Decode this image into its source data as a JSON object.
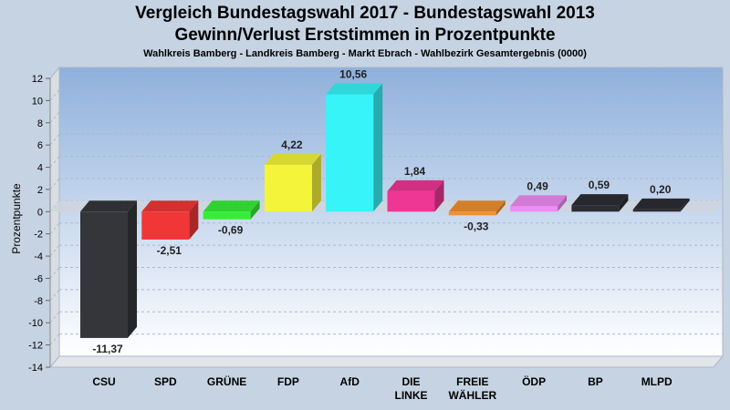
{
  "header": {
    "title_line1": "Vergleich Bundestagswahl 2017 - Bundestagswahl 2013",
    "title_line2": "Gewinn/Verlust Erststimmen in Prozentpunkte",
    "subtitle": "Wahlkreis Bamberg - Landkreis Bamberg - Markt Ebrach - Wahlbezirk Gesamtergebnis (0000)"
  },
  "chart_data": {
    "type": "bar",
    "title": "Vergleich Bundestagswahl 2017 - Bundestagswahl 2013",
    "subtitle": "Gewinn/Verlust Erststimmen in Prozentpunkte",
    "ylabel": "Prozentpunkte",
    "xlabel": "",
    "ylim": [
      -14,
      12
    ],
    "yticks": [
      12,
      10,
      8,
      6,
      4,
      2,
      0,
      -2,
      -4,
      -6,
      -8,
      -10,
      -12,
      -14
    ],
    "grid": true,
    "categories": [
      {
        "lines": [
          "CSU"
        ]
      },
      {
        "lines": [
          "SPD"
        ]
      },
      {
        "lines": [
          "GRÜNE"
        ]
      },
      {
        "lines": [
          "FDP"
        ]
      },
      {
        "lines": [
          "AfD"
        ]
      },
      {
        "lines": [
          "DIE",
          "LINKE"
        ]
      },
      {
        "lines": [
          "FREIE",
          "WÄHLER"
        ]
      },
      {
        "lines": [
          "ÖDP"
        ]
      },
      {
        "lines": [
          "BP"
        ]
      },
      {
        "lines": [
          "MLPD"
        ]
      }
    ],
    "values": [
      -11.37,
      -2.51,
      -0.69,
      4.22,
      10.56,
      1.84,
      -0.33,
      0.49,
      0.59,
      0.2
    ],
    "value_labels": [
      "-11,37",
      "-2,51",
      "-0,69",
      "4,22",
      "10,56",
      "1,84",
      "-0,33",
      "0,49",
      "0,59",
      "0,20"
    ],
    "colors": [
      "#34363a",
      "#f03636",
      "#36ee36",
      "#f4f43a",
      "#36f4f8",
      "#ee3694",
      "#f09030",
      "#ee8cf4",
      "#2c2e34",
      "#2c2e34"
    ]
  }
}
